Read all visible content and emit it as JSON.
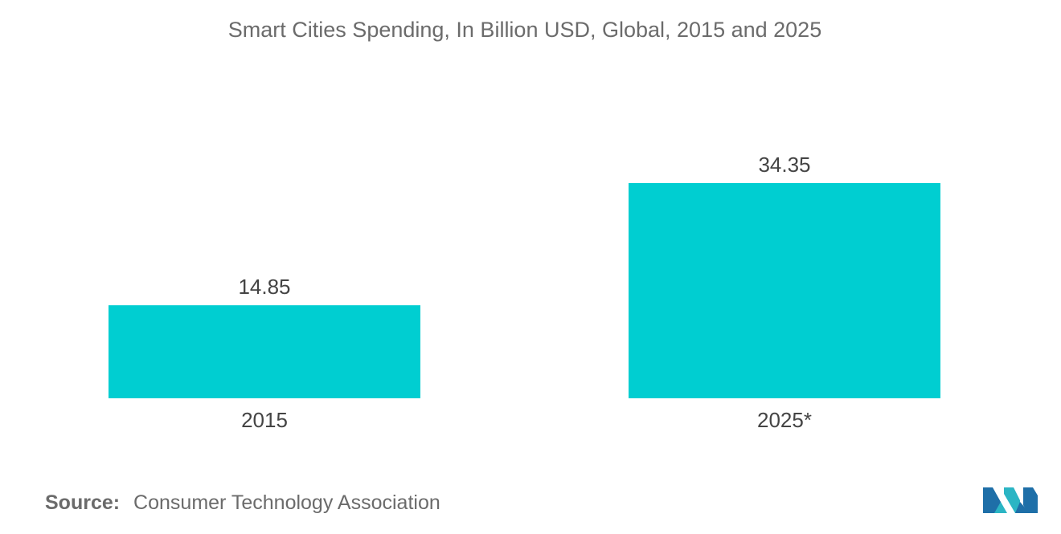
{
  "chart_data": {
    "type": "bar",
    "title": "Smart Cities Spending, In Billion USD, Global, 2015 and 2025",
    "categories": [
      "2015",
      "2025*"
    ],
    "values": [
      14.85,
      34.35
    ],
    "value_labels": [
      "14.85",
      "34.35"
    ],
    "xlabel": "",
    "ylabel": "",
    "ylim": [
      0,
      40
    ],
    "grid": false,
    "legend": "none",
    "bar_color": "#00ced1"
  },
  "footer": {
    "source_label": "Source:",
    "source_text": "Consumer Technology Association"
  },
  "logo": {
    "icon": "mordor-intelligence-logo-icon",
    "colors": [
      "#1e6fa8",
      "#2bb5c4"
    ]
  }
}
